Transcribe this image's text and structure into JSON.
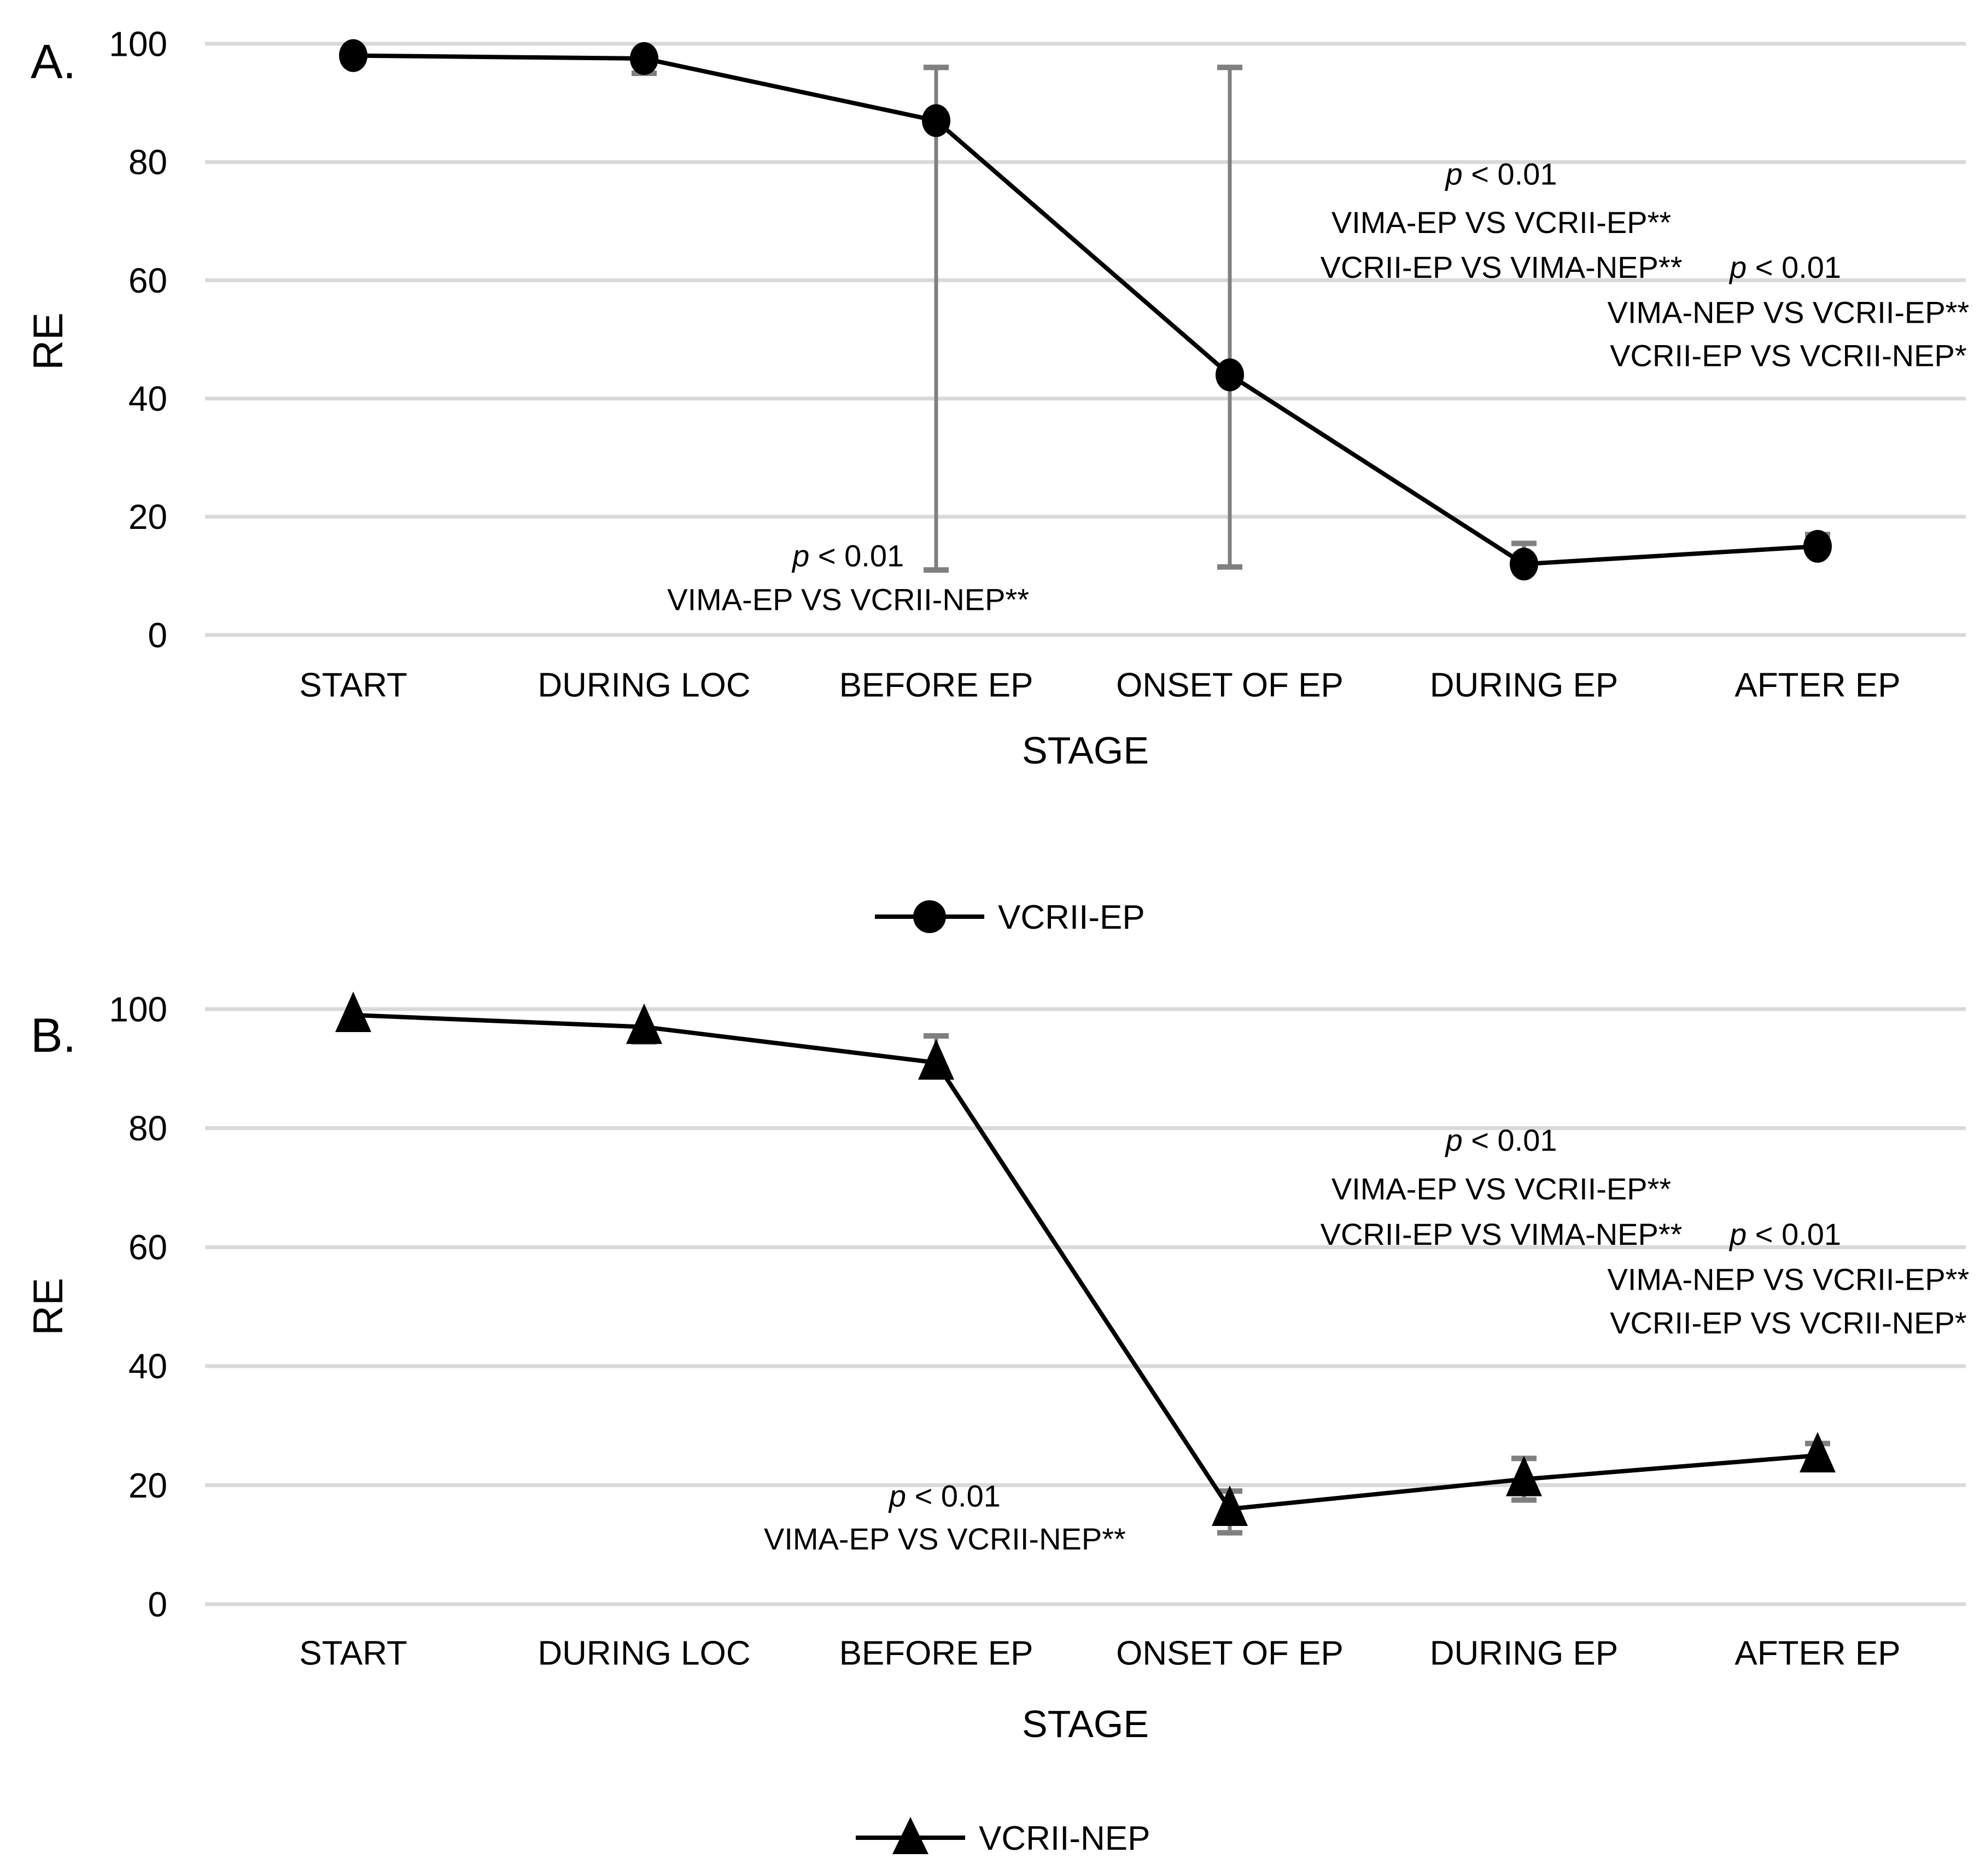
{
  "figure": {
    "background": "#ffffff",
    "colors": {
      "series": "#000000",
      "error_bar": "#808080",
      "gridline": "#d9d9d9",
      "text": "#000000"
    }
  },
  "chart_data": [
    {
      "type": "line",
      "panel_label": "A.",
      "ylabel": "RE",
      "xlabel": "STAGE",
      "ylim": [
        0,
        100
      ],
      "yticks": [
        0,
        20,
        40,
        60,
        80,
        100
      ],
      "grid": "horizontal",
      "legend_position": "bottom-center",
      "categories": [
        "START",
        "DURING LOC",
        "BEFORE EP",
        "ONSET OF EP",
        "DURING EP",
        "AFTER EP"
      ],
      "series": [
        {
          "name": "VCRII-EP",
          "marker": "circle",
          "values": [
            98,
            97.5,
            87,
            44,
            12,
            15
          ],
          "error_minus": [
            0,
            2.5,
            76,
            32.5,
            0,
            0
          ],
          "error_plus": [
            0,
            0,
            9,
            52,
            3.5,
            2
          ]
        }
      ],
      "legend": {
        "label": "VCRII-EP",
        "marker": "circle"
      },
      "annotations": [
        {
          "text": "p < 0.01",
          "italic_p": true,
          "x": 3.92,
          "y": 78.0
        },
        {
          "text": "VIMA-EP VS VCRII-EP**",
          "x": 3.92,
          "y": 69.8
        },
        {
          "text": "VCRII-EP VS VIMA-NEP**",
          "x": 3.92,
          "y": 62.2
        },
        {
          "text": "p < 0.01",
          "italic_p": true,
          "x": 4.89,
          "y": 62.2
        },
        {
          "text": "VIMA-NEP VS VCRII-EP**",
          "x": 4.9,
          "y": 54.6
        },
        {
          "text": "VCRII-EP VS VCRII-NEP*",
          "x": 4.9,
          "y": 47.3
        },
        {
          "text": "p < 0.01",
          "italic_p": true,
          "x": 1.69,
          "y": 13.4
        },
        {
          "text": "VIMA-EP VS VCRII-NEP**",
          "x": 1.69,
          "y": 6.0
        }
      ]
    },
    {
      "type": "line",
      "panel_label": "B.",
      "ylabel": "RE",
      "xlabel": "STAGE",
      "ylim": [
        0,
        100
      ],
      "yticks": [
        0,
        20,
        40,
        60,
        80,
        100
      ],
      "grid": "horizontal",
      "legend_position": "bottom-center",
      "categories": [
        "START",
        "DURING LOC",
        "BEFORE EP",
        "ONSET OF EP",
        "DURING EP",
        "AFTER EP"
      ],
      "series": [
        {
          "name": "VCRII-NEP",
          "marker": "triangle",
          "values": [
            99,
            97,
            91,
            16,
            21,
            25
          ],
          "error_minus": [
            0,
            2.5,
            0,
            4,
            3.5,
            2
          ],
          "error_plus": [
            0,
            0,
            4.5,
            3,
            3.5,
            2
          ]
        }
      ],
      "legend": {
        "label": "VCRII-NEP",
        "marker": "triangle"
      },
      "annotations": [
        {
          "text": "p < 0.01",
          "italic_p": true,
          "x": 3.92,
          "y": 78.0
        },
        {
          "text": "VIMA-EP VS VCRII-EP**",
          "x": 3.92,
          "y": 69.8
        },
        {
          "text": "VCRII-EP VS VIMA-NEP**",
          "x": 3.92,
          "y": 62.2
        },
        {
          "text": "p < 0.01",
          "italic_p": true,
          "x": 4.89,
          "y": 62.2
        },
        {
          "text": "VIMA-NEP VS VCRII-EP**",
          "x": 4.9,
          "y": 54.6
        },
        {
          "text": "VCRII-EP VS VCRII-NEP*",
          "x": 4.9,
          "y": 47.3
        },
        {
          "text": "p < 0.01",
          "italic_p": true,
          "x": 2.02,
          "y": 18.2
        },
        {
          "text": "VIMA-EP VS VCRII-NEP**",
          "x": 2.02,
          "y": 11.0
        }
      ]
    }
  ]
}
